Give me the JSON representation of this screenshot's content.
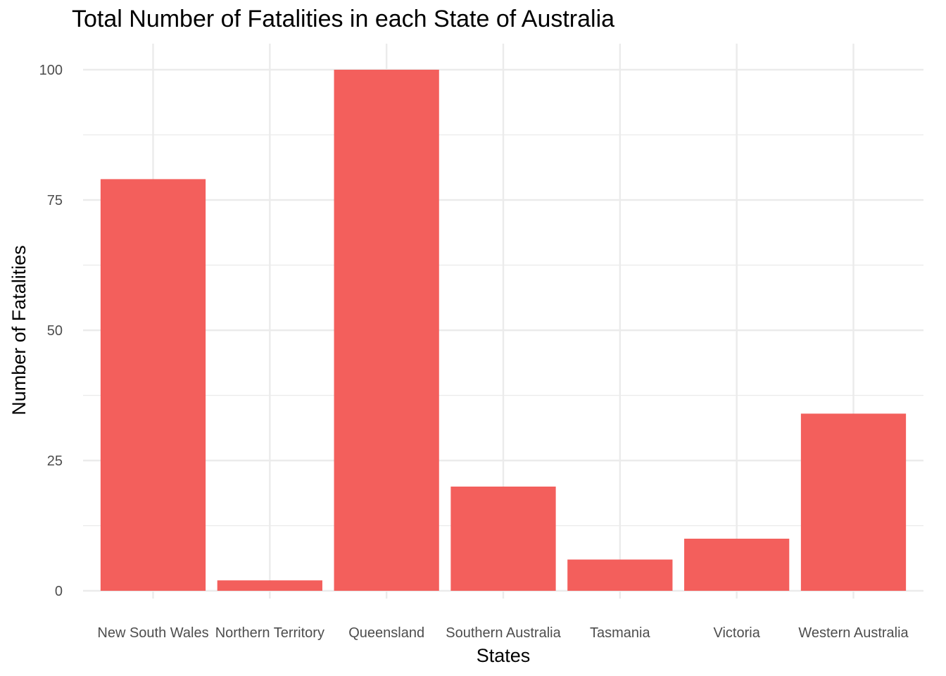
{
  "chart_data": {
    "type": "bar",
    "title": "Total Number of Fatalities in each State of Australia",
    "xlabel": "States",
    "ylabel": "Number of Fatalities",
    "categories": [
      "New South Wales",
      "Northern Territory",
      "Queensland",
      "Southern Australia",
      "Tasmania",
      "Victoria",
      "Western Australia"
    ],
    "values": [
      79,
      2,
      100,
      20,
      6,
      10,
      34
    ],
    "ylim": [
      0,
      100
    ],
    "yticks": [
      0,
      25,
      50,
      75,
      100
    ],
    "grid": true,
    "bar_color": "#F35F5C",
    "grid_color": "#EBEBEB"
  }
}
